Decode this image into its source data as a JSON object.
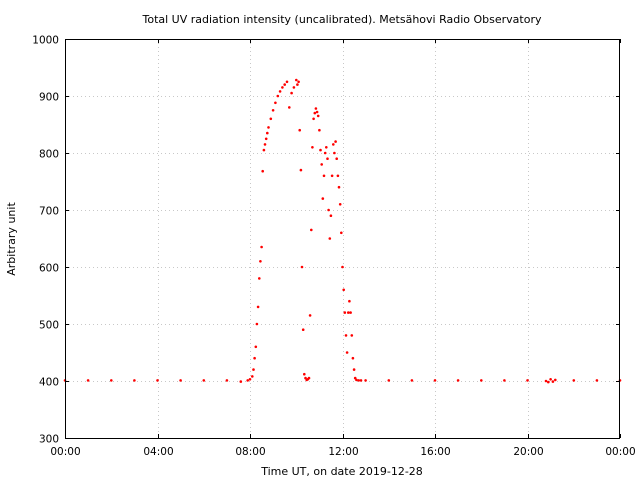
{
  "chart_data": {
    "type": "scatter",
    "title": "Total UV radiation intensity (uncalibrated). Metsähovi Radio Observatory",
    "xlabel": "Time UT, on date 2019-12-28",
    "ylabel": "Arbitrary unit",
    "xlim": [
      0,
      24
    ],
    "ylim": [
      300,
      1000
    ],
    "x_ticks": [
      {
        "value": 0,
        "label": "00:00"
      },
      {
        "value": 4,
        "label": "04:00"
      },
      {
        "value": 8,
        "label": "08:00"
      },
      {
        "value": 12,
        "label": "12:00"
      },
      {
        "value": 16,
        "label": "16:00"
      },
      {
        "value": 20,
        "label": "20:00"
      },
      {
        "value": 24,
        "label": "00:00"
      }
    ],
    "y_ticks": [
      300,
      400,
      500,
      600,
      700,
      800,
      900,
      1000
    ],
    "grid": true,
    "legend": "none",
    "series": [
      {
        "color": "#ff0000",
        "marker": "dot",
        "x": [
          0.0,
          1.0,
          2.0,
          3.0,
          4.0,
          5.0,
          6.0,
          7.0,
          7.6,
          7.9,
          8.0,
          8.1,
          8.15,
          8.2,
          8.25,
          8.3,
          8.35,
          8.4,
          8.45,
          8.5,
          8.55,
          8.6,
          8.65,
          8.7,
          8.75,
          8.8,
          8.9,
          9.0,
          9.1,
          9.2,
          9.3,
          9.4,
          9.5,
          9.6,
          9.7,
          9.8,
          9.9,
          10.0,
          10.05,
          10.1,
          10.15,
          10.2,
          10.25,
          10.3,
          10.35,
          10.4,
          10.45,
          10.5,
          10.55,
          10.6,
          10.65,
          10.7,
          10.75,
          10.8,
          10.85,
          10.9,
          10.95,
          11.0,
          11.05,
          11.1,
          11.15,
          11.2,
          11.25,
          11.3,
          11.35,
          11.4,
          11.45,
          11.5,
          11.55,
          11.6,
          11.65,
          11.7,
          11.75,
          11.8,
          11.85,
          11.9,
          11.95,
          12.0,
          12.05,
          12.1,
          12.15,
          12.2,
          12.25,
          12.3,
          12.35,
          12.4,
          12.45,
          12.5,
          12.55,
          12.6,
          12.7,
          12.8,
          13.0,
          14.0,
          15.0,
          16.0,
          17.0,
          18.0,
          19.0,
          20.0,
          20.8,
          20.9,
          21.0,
          21.1,
          21.2,
          22.0,
          23.0,
          24.0
        ],
        "y": [
          401,
          401,
          401,
          401,
          401,
          401,
          401,
          401,
          399,
          401,
          403,
          408,
          420,
          440,
          460,
          500,
          530,
          580,
          610,
          635,
          768,
          805,
          815,
          825,
          835,
          845,
          860,
          875,
          888,
          900,
          908,
          915,
          920,
          925,
          880,
          905,
          915,
          928,
          920,
          925,
          840,
          770,
          600,
          490,
          412,
          405,
          402,
          403,
          405,
          515,
          665,
          810,
          860,
          870,
          878,
          872,
          865,
          840,
          805,
          780,
          720,
          760,
          800,
          810,
          790,
          700,
          650,
          690,
          760,
          815,
          800,
          820,
          790,
          760,
          740,
          710,
          660,
          600,
          560,
          520,
          480,
          450,
          520,
          540,
          520,
          480,
          440,
          420,
          405,
          402,
          401,
          401,
          401,
          401,
          401,
          401,
          401,
          401,
          401,
          401,
          400,
          398,
          403,
          399,
          402,
          401,
          401,
          401
        ]
      }
    ]
  }
}
